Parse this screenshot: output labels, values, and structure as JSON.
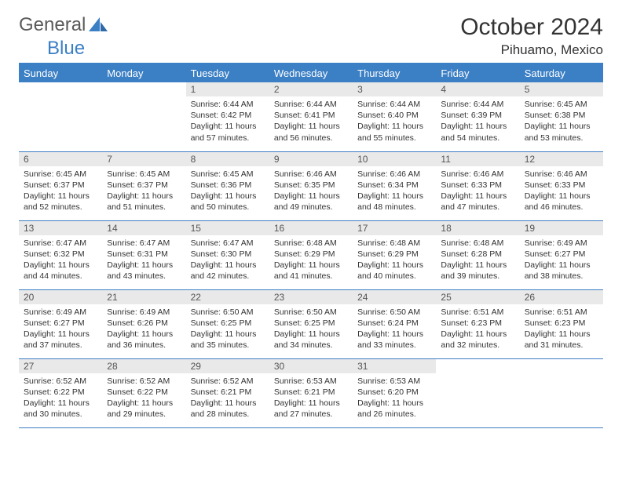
{
  "brand": {
    "part1": "General",
    "part2": "Blue"
  },
  "title": "October 2024",
  "location": "Pihuamo, Mexico",
  "colors": {
    "accent": "#3b7fc4",
    "daynum_bg": "#e9e9e9",
    "text": "#333333",
    "bg": "#ffffff"
  },
  "weekdays": [
    "Sunday",
    "Monday",
    "Tuesday",
    "Wednesday",
    "Thursday",
    "Friday",
    "Saturday"
  ],
  "weeks": [
    [
      null,
      null,
      {
        "n": "1",
        "sr": "Sunrise: 6:44 AM",
        "ss": "Sunset: 6:42 PM",
        "d1": "Daylight: 11 hours",
        "d2": "and 57 minutes."
      },
      {
        "n": "2",
        "sr": "Sunrise: 6:44 AM",
        "ss": "Sunset: 6:41 PM",
        "d1": "Daylight: 11 hours",
        "d2": "and 56 minutes."
      },
      {
        "n": "3",
        "sr": "Sunrise: 6:44 AM",
        "ss": "Sunset: 6:40 PM",
        "d1": "Daylight: 11 hours",
        "d2": "and 55 minutes."
      },
      {
        "n": "4",
        "sr": "Sunrise: 6:44 AM",
        "ss": "Sunset: 6:39 PM",
        "d1": "Daylight: 11 hours",
        "d2": "and 54 minutes."
      },
      {
        "n": "5",
        "sr": "Sunrise: 6:45 AM",
        "ss": "Sunset: 6:38 PM",
        "d1": "Daylight: 11 hours",
        "d2": "and 53 minutes."
      }
    ],
    [
      {
        "n": "6",
        "sr": "Sunrise: 6:45 AM",
        "ss": "Sunset: 6:37 PM",
        "d1": "Daylight: 11 hours",
        "d2": "and 52 minutes."
      },
      {
        "n": "7",
        "sr": "Sunrise: 6:45 AM",
        "ss": "Sunset: 6:37 PM",
        "d1": "Daylight: 11 hours",
        "d2": "and 51 minutes."
      },
      {
        "n": "8",
        "sr": "Sunrise: 6:45 AM",
        "ss": "Sunset: 6:36 PM",
        "d1": "Daylight: 11 hours",
        "d2": "and 50 minutes."
      },
      {
        "n": "9",
        "sr": "Sunrise: 6:46 AM",
        "ss": "Sunset: 6:35 PM",
        "d1": "Daylight: 11 hours",
        "d2": "and 49 minutes."
      },
      {
        "n": "10",
        "sr": "Sunrise: 6:46 AM",
        "ss": "Sunset: 6:34 PM",
        "d1": "Daylight: 11 hours",
        "d2": "and 48 minutes."
      },
      {
        "n": "11",
        "sr": "Sunrise: 6:46 AM",
        "ss": "Sunset: 6:33 PM",
        "d1": "Daylight: 11 hours",
        "d2": "and 47 minutes."
      },
      {
        "n": "12",
        "sr": "Sunrise: 6:46 AM",
        "ss": "Sunset: 6:33 PM",
        "d1": "Daylight: 11 hours",
        "d2": "and 46 minutes."
      }
    ],
    [
      {
        "n": "13",
        "sr": "Sunrise: 6:47 AM",
        "ss": "Sunset: 6:32 PM",
        "d1": "Daylight: 11 hours",
        "d2": "and 44 minutes."
      },
      {
        "n": "14",
        "sr": "Sunrise: 6:47 AM",
        "ss": "Sunset: 6:31 PM",
        "d1": "Daylight: 11 hours",
        "d2": "and 43 minutes."
      },
      {
        "n": "15",
        "sr": "Sunrise: 6:47 AM",
        "ss": "Sunset: 6:30 PM",
        "d1": "Daylight: 11 hours",
        "d2": "and 42 minutes."
      },
      {
        "n": "16",
        "sr": "Sunrise: 6:48 AM",
        "ss": "Sunset: 6:29 PM",
        "d1": "Daylight: 11 hours",
        "d2": "and 41 minutes."
      },
      {
        "n": "17",
        "sr": "Sunrise: 6:48 AM",
        "ss": "Sunset: 6:29 PM",
        "d1": "Daylight: 11 hours",
        "d2": "and 40 minutes."
      },
      {
        "n": "18",
        "sr": "Sunrise: 6:48 AM",
        "ss": "Sunset: 6:28 PM",
        "d1": "Daylight: 11 hours",
        "d2": "and 39 minutes."
      },
      {
        "n": "19",
        "sr": "Sunrise: 6:49 AM",
        "ss": "Sunset: 6:27 PM",
        "d1": "Daylight: 11 hours",
        "d2": "and 38 minutes."
      }
    ],
    [
      {
        "n": "20",
        "sr": "Sunrise: 6:49 AM",
        "ss": "Sunset: 6:27 PM",
        "d1": "Daylight: 11 hours",
        "d2": "and 37 minutes."
      },
      {
        "n": "21",
        "sr": "Sunrise: 6:49 AM",
        "ss": "Sunset: 6:26 PM",
        "d1": "Daylight: 11 hours",
        "d2": "and 36 minutes."
      },
      {
        "n": "22",
        "sr": "Sunrise: 6:50 AM",
        "ss": "Sunset: 6:25 PM",
        "d1": "Daylight: 11 hours",
        "d2": "and 35 minutes."
      },
      {
        "n": "23",
        "sr": "Sunrise: 6:50 AM",
        "ss": "Sunset: 6:25 PM",
        "d1": "Daylight: 11 hours",
        "d2": "and 34 minutes."
      },
      {
        "n": "24",
        "sr": "Sunrise: 6:50 AM",
        "ss": "Sunset: 6:24 PM",
        "d1": "Daylight: 11 hours",
        "d2": "and 33 minutes."
      },
      {
        "n": "25",
        "sr": "Sunrise: 6:51 AM",
        "ss": "Sunset: 6:23 PM",
        "d1": "Daylight: 11 hours",
        "d2": "and 32 minutes."
      },
      {
        "n": "26",
        "sr": "Sunrise: 6:51 AM",
        "ss": "Sunset: 6:23 PM",
        "d1": "Daylight: 11 hours",
        "d2": "and 31 minutes."
      }
    ],
    [
      {
        "n": "27",
        "sr": "Sunrise: 6:52 AM",
        "ss": "Sunset: 6:22 PM",
        "d1": "Daylight: 11 hours",
        "d2": "and 30 minutes."
      },
      {
        "n": "28",
        "sr": "Sunrise: 6:52 AM",
        "ss": "Sunset: 6:22 PM",
        "d1": "Daylight: 11 hours",
        "d2": "and 29 minutes."
      },
      {
        "n": "29",
        "sr": "Sunrise: 6:52 AM",
        "ss": "Sunset: 6:21 PM",
        "d1": "Daylight: 11 hours",
        "d2": "and 28 minutes."
      },
      {
        "n": "30",
        "sr": "Sunrise: 6:53 AM",
        "ss": "Sunset: 6:21 PM",
        "d1": "Daylight: 11 hours",
        "d2": "and 27 minutes."
      },
      {
        "n": "31",
        "sr": "Sunrise: 6:53 AM",
        "ss": "Sunset: 6:20 PM",
        "d1": "Daylight: 11 hours",
        "d2": "and 26 minutes."
      },
      null,
      null
    ]
  ]
}
